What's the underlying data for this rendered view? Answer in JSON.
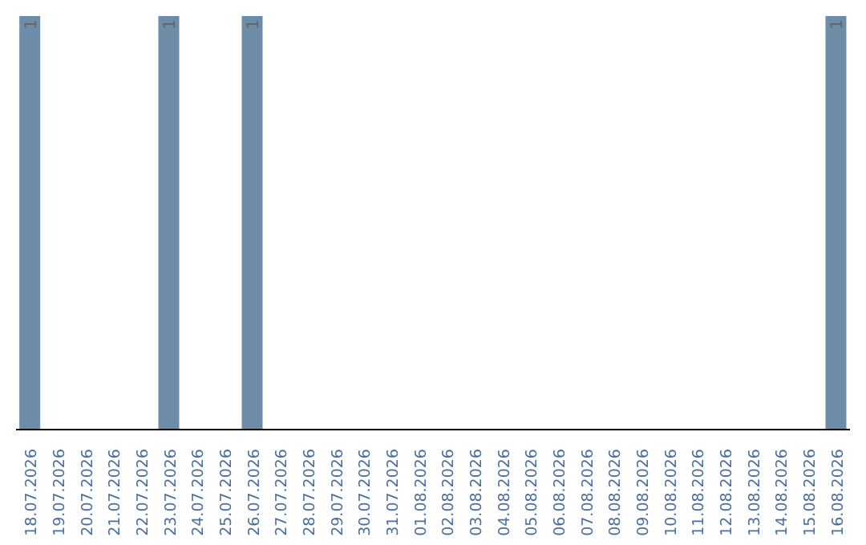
{
  "chart_data": {
    "type": "bar",
    "categories": [
      "18.07.2026",
      "19.07.2026",
      "20.07.2026",
      "21.07.2026",
      "22.07.2026",
      "23.07.2026",
      "24.07.2026",
      "25.07.2026",
      "26.07.2026",
      "27.07.2026",
      "28.07.2026",
      "29.07.2026",
      "30.07.2026",
      "31.07.2026",
      "01.08.2026",
      "02.08.2026",
      "03.08.2026",
      "04.08.2026",
      "05.08.2026",
      "06.08.2026",
      "07.08.2026",
      "08.08.2026",
      "09.08.2026",
      "10.08.2026",
      "11.08.2026",
      "12.08.2026",
      "13.08.2026",
      "14.08.2026",
      "15.08.2026",
      "16.08.2026"
    ],
    "values": [
      1,
      0,
      0,
      0,
      0,
      1,
      0,
      0,
      1,
      0,
      0,
      0,
      0,
      0,
      0,
      0,
      0,
      0,
      0,
      0,
      0,
      0,
      0,
      0,
      0,
      0,
      0,
      0,
      0,
      1
    ],
    "value_labels": [
      "1",
      null,
      null,
      null,
      null,
      "1",
      null,
      null,
      "1",
      null,
      null,
      null,
      null,
      null,
      null,
      null,
      null,
      null,
      null,
      null,
      null,
      null,
      null,
      null,
      null,
      null,
      null,
      null,
      null,
      "1"
    ],
    "color": "#6d8ca8",
    "grid": false,
    "legend": false
  }
}
